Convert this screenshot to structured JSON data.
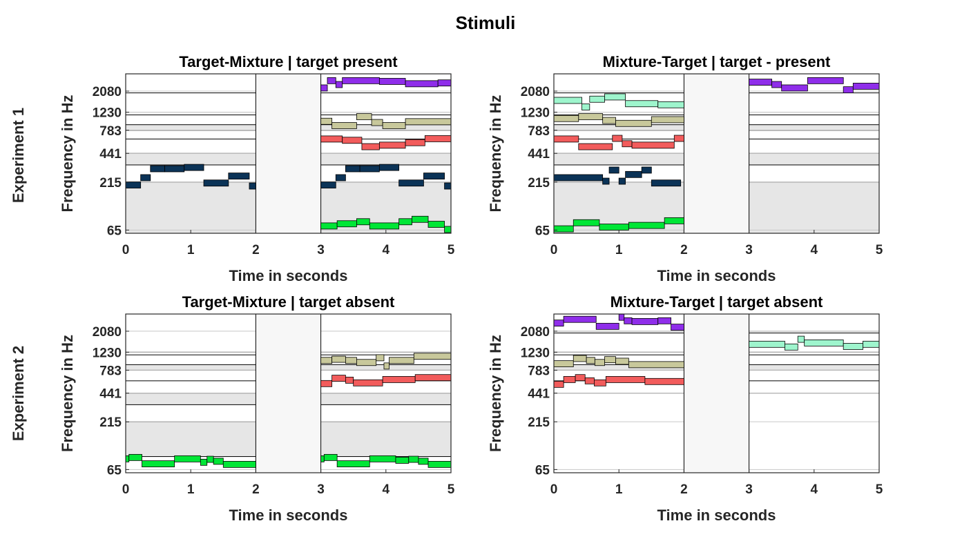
{
  "figure": {
    "title": "Stimuli",
    "row_labels": [
      "Experiment 1",
      "Experiment 2"
    ]
  },
  "chart_data": [
    {
      "type": "bar",
      "title": "Target-Mixture | target present",
      "xlabel": "Time in seconds",
      "ylabel": "Frequency in Hz",
      "xlim": [
        0,
        5
      ],
      "xticks": [
        0,
        1,
        2,
        3,
        4,
        5
      ],
      "ytick_labels": [
        "65",
        "215",
        "441",
        "783",
        "1230",
        "2080"
      ],
      "gap_interval": [
        2,
        3
      ],
      "bands": [
        {
          "range": [
            "60",
            "215"
          ],
          "fill": "#e6e6e6"
        },
        {
          "range": [
            "330",
            "441"
          ],
          "fill": "#e6e6e6"
        },
        {
          "range": [
            "630",
            "783"
          ],
          "fill": "#ffffff"
        },
        {
          "range": [
            "783",
            "900"
          ],
          "fill": "#e6e6e6"
        },
        {
          "range": [
            "1150",
            "1230"
          ],
          "fill": "#ffffff"
        },
        {
          "range": [
            "1990",
            "2080"
          ],
          "fill": "#ffffff"
        }
      ],
      "series": [
        {
          "color": "#0b3357",
          "segments": [
            [
              0.0,
              0.23,
              200
            ],
            [
              0.23,
              0.38,
              240
            ],
            [
              0.38,
              0.6,
              300
            ],
            [
              0.6,
              0.9,
              300
            ],
            [
              0.9,
              1.2,
              310
            ],
            [
              1.2,
              1.58,
              210
            ],
            [
              1.58,
              1.9,
              250
            ],
            [
              1.9,
              2.0,
              195
            ],
            [
              3.0,
              3.23,
              200
            ],
            [
              3.23,
              3.38,
              240
            ],
            [
              3.38,
              3.6,
              300
            ],
            [
              3.6,
              3.9,
              300
            ],
            [
              3.9,
              4.2,
              310
            ],
            [
              4.2,
              4.58,
              210
            ],
            [
              4.58,
              4.9,
              250
            ],
            [
              4.9,
              5.0,
              195
            ]
          ]
        },
        {
          "color": "#00e636",
          "segments": [
            [
              3.0,
              3.25,
              72
            ],
            [
              3.25,
              3.55,
              76
            ],
            [
              3.55,
              3.75,
              80
            ],
            [
              3.75,
              4.2,
              72
            ],
            [
              4.2,
              4.4,
              80
            ],
            [
              4.4,
              4.65,
              85
            ],
            [
              4.65,
              4.9,
              75
            ],
            [
              4.9,
              5.0,
              66
            ]
          ]
        },
        {
          "color": "#f25c5c",
          "segments": [
            [
              3.0,
              3.33,
              630
            ],
            [
              3.33,
              3.63,
              610
            ],
            [
              3.63,
              3.9,
              520
            ],
            [
              3.9,
              4.3,
              540
            ],
            [
              4.3,
              4.6,
              575
            ],
            [
              4.6,
              5.0,
              635
            ]
          ]
        },
        {
          "color": "#c8c89b",
          "segments": [
            [
              3.0,
              3.17,
              980
            ],
            [
              3.17,
              3.55,
              880
            ],
            [
              3.55,
              3.78,
              1100
            ],
            [
              3.78,
              3.95,
              950
            ],
            [
              3.95,
              4.3,
              880
            ],
            [
              4.3,
              5.0,
              970
            ]
          ]
        },
        {
          "color": "#8f2eea",
          "segments": [
            [
              3.0,
              3.1,
              2250
            ],
            [
              3.1,
              3.23,
              2700
            ],
            [
              3.23,
              3.33,
              2450
            ],
            [
              3.33,
              3.9,
              2700
            ],
            [
              3.9,
              4.3,
              2650
            ],
            [
              4.3,
              4.8,
              2500
            ],
            [
              4.8,
              5.0,
              2550
            ]
          ]
        }
      ]
    },
    {
      "type": "bar",
      "title": "Mixture-Target | target - present",
      "xlabel": "Time in seconds",
      "ylabel": "Frequency in Hz",
      "xlim": [
        0,
        5
      ],
      "xticks": [
        0,
        1,
        2,
        3,
        4,
        5
      ],
      "ytick_labels": [
        "65",
        "215",
        "441",
        "783",
        "1230",
        "2080"
      ],
      "gap_interval": [
        2,
        3
      ],
      "bands": [
        {
          "range": [
            "60",
            "215"
          ],
          "fill": "#e6e6e6"
        },
        {
          "range": [
            "330",
            "441"
          ],
          "fill": "#e6e6e6"
        },
        {
          "range": [
            "630",
            "783"
          ],
          "fill": "#ffffff"
        },
        {
          "range": [
            "783",
            "900"
          ],
          "fill": "#e6e6e6"
        },
        {
          "range": [
            "1150",
            "1230"
          ],
          "fill": "#ffffff"
        },
        {
          "range": [
            "1990",
            "2080"
          ],
          "fill": "#ffffff"
        }
      ],
      "series": [
        {
          "color": "#0b3357",
          "segments": [
            [
              0.0,
              0.75,
              240
            ],
            [
              0.75,
              0.85,
              220
            ],
            [
              0.85,
              1.0,
              290
            ],
            [
              1.0,
              1.1,
              220
            ],
            [
              1.1,
              1.35,
              260
            ],
            [
              1.35,
              1.5,
              290
            ],
            [
              1.5,
              1.95,
              210
            ]
          ]
        },
        {
          "color": "#00e636",
          "segments": [
            [
              0.0,
              0.3,
              67
            ],
            [
              0.3,
              0.7,
              78
            ],
            [
              0.7,
              1.15,
              70
            ],
            [
              1.15,
              1.7,
              73
            ],
            [
              1.7,
              2.0,
              82
            ]
          ]
        },
        {
          "color": "#f25c5c",
          "segments": [
            [
              0.0,
              0.38,
              630
            ],
            [
              0.38,
              0.9,
              520
            ],
            [
              0.9,
              1.05,
              640
            ],
            [
              1.05,
              1.2,
              560
            ],
            [
              1.2,
              1.85,
              540
            ],
            [
              1.85,
              2.0,
              640
            ]
          ]
        },
        {
          "color": "#c8c89b",
          "segments": [
            [
              0.0,
              0.38,
              1050
            ],
            [
              0.38,
              0.75,
              1100
            ],
            [
              0.75,
              0.95,
              1000
            ],
            [
              0.95,
              1.5,
              930
            ],
            [
              1.5,
              2.0,
              1020
            ]
          ]
        },
        {
          "color": "#9ef5cd",
          "segments": [
            [
              0.0,
              0.43,
              1650
            ],
            [
              0.43,
              0.55,
              1400
            ],
            [
              0.55,
              0.78,
              1700
            ],
            [
              0.78,
              1.1,
              1800
            ],
            [
              1.1,
              1.6,
              1520
            ],
            [
              1.6,
              2.0,
              1480
            ]
          ]
        },
        {
          "color": "#8f2eea",
          "segments": [
            [
              3.0,
              3.35,
              2600
            ],
            [
              3.35,
              3.5,
              2450
            ],
            [
              3.5,
              3.9,
              2250
            ],
            [
              3.9,
              4.45,
              2700
            ],
            [
              4.45,
              4.6,
              2150
            ],
            [
              4.6,
              5.0,
              2350
            ]
          ]
        }
      ]
    },
    {
      "type": "bar",
      "title": "Target-Mixture | target absent",
      "xlabel": "Time in seconds",
      "ylabel": "Frequency in Hz",
      "xlim": [
        0,
        5
      ],
      "xticks": [
        0,
        1,
        2,
        3,
        4,
        5
      ],
      "ytick_labels": [
        "65",
        "215",
        "441",
        "783",
        "1230",
        "2080"
      ],
      "gap_interval": [
        2,
        3
      ],
      "bands": [
        {
          "range": [
            "90",
            "215"
          ],
          "fill": "#e6e6e6"
        },
        {
          "range": [
            "330",
            "441"
          ],
          "fill": "#e6e6e6"
        },
        {
          "range": [
            "600",
            "783"
          ],
          "fill": "#ffffff"
        },
        {
          "range": [
            "783",
            "900"
          ],
          "fill": "#e6e6e6"
        },
        {
          "range": [
            "1150",
            "1230"
          ],
          "fill": "#ffffff"
        }
      ],
      "series": [
        {
          "color": "#00e636",
          "segments": [
            [
              0.0,
              0.05,
              85
            ],
            [
              0.05,
              0.25,
              88
            ],
            [
              0.25,
              0.75,
              75
            ],
            [
              0.75,
              1.15,
              85
            ],
            [
              1.15,
              1.25,
              78
            ],
            [
              1.25,
              1.35,
              84
            ],
            [
              1.35,
              1.5,
              80
            ],
            [
              1.5,
              2.0,
              74
            ],
            [
              3.0,
              3.05,
              85
            ],
            [
              3.05,
              3.25,
              88
            ],
            [
              3.25,
              3.75,
              75
            ],
            [
              3.75,
              4.15,
              85
            ],
            [
              4.15,
              4.35,
              82
            ],
            [
              4.35,
              4.5,
              84
            ],
            [
              4.5,
              4.65,
              80
            ],
            [
              4.65,
              5.0,
              74
            ]
          ]
        },
        {
          "color": "#f25c5c",
          "segments": [
            [
              3.0,
              3.17,
              560
            ],
            [
              3.17,
              3.38,
              640
            ],
            [
              3.38,
              3.5,
              610
            ],
            [
              3.5,
              3.95,
              570
            ],
            [
              3.95,
              4.45,
              620
            ],
            [
              4.45,
              5.0,
              650
            ]
          ]
        },
        {
          "color": "#c8c89b",
          "segments": [
            [
              3.0,
              3.17,
              1000
            ],
            [
              3.17,
              3.38,
              1030
            ],
            [
              3.38,
              3.55,
              1000
            ],
            [
              3.55,
              3.85,
              950
            ],
            [
              3.85,
              3.97,
              1070
            ],
            [
              3.97,
              4.05,
              870
            ],
            [
              4.05,
              4.43,
              1000
            ],
            [
              4.43,
              5.0,
              1110
            ]
          ]
        }
      ]
    },
    {
      "type": "bar",
      "title": "Mixture-Target | target absent",
      "xlabel": "Time in seconds",
      "ylabel": "Frequency in Hz",
      "xlim": [
        0,
        5
      ],
      "xticks": [
        0,
        1,
        2,
        3,
        4,
        5
      ],
      "ytick_labels": [
        "65",
        "215",
        "441",
        "783",
        "1230",
        "2080"
      ],
      "gap_interval": [
        2,
        3
      ],
      "bands": [
        {
          "range": [
            "441",
            "600"
          ],
          "fill": "#ffffff"
        },
        {
          "range": [
            "783",
            "900"
          ],
          "fill": "#e6e6e6"
        },
        {
          "range": [
            "1150",
            "1230"
          ],
          "fill": "#ffffff"
        },
        {
          "range": [
            "1990",
            "2080"
          ],
          "fill": "#ffffff"
        }
      ],
      "series": [
        {
          "color": "#f25c5c",
          "segments": [
            [
              0.0,
              0.15,
              550
            ],
            [
              0.15,
              0.33,
              620
            ],
            [
              0.33,
              0.48,
              650
            ],
            [
              0.48,
              0.62,
              600
            ],
            [
              0.62,
              0.8,
              570
            ],
            [
              0.8,
              1.4,
              620
            ],
            [
              1.4,
              2.0,
              590
            ]
          ]
        },
        {
          "color": "#c8c89b",
          "segments": [
            [
              0.0,
              0.3,
              920
            ],
            [
              0.3,
              0.5,
              1050
            ],
            [
              0.5,
              0.63,
              1000
            ],
            [
              0.63,
              0.78,
              950
            ],
            [
              0.78,
              0.95,
              1020
            ],
            [
              0.95,
              1.15,
              980
            ],
            [
              1.15,
              2.0,
              900
            ]
          ]
        },
        {
          "color": "#8f2eea",
          "segments": [
            [
              0.0,
              0.15,
              2550
            ],
            [
              0.15,
              0.65,
              2800
            ],
            [
              0.65,
              1.0,
              2350
            ],
            [
              1.0,
              1.08,
              2950
            ],
            [
              1.08,
              1.2,
              2700
            ],
            [
              1.2,
              1.6,
              2650
            ],
            [
              1.6,
              1.8,
              2700
            ],
            [
              1.8,
              2.0,
              2300
            ]
          ]
        },
        {
          "color": "#9ef5cd",
          "segments": [
            [
              3.0,
              3.55,
              1500
            ],
            [
              3.55,
              3.75,
              1400
            ],
            [
              3.75,
              3.85,
              1700
            ],
            [
              3.85,
              4.45,
              1550
            ],
            [
              4.45,
              4.75,
              1420
            ],
            [
              4.75,
              5.0,
              1500
            ]
          ]
        }
      ]
    }
  ]
}
